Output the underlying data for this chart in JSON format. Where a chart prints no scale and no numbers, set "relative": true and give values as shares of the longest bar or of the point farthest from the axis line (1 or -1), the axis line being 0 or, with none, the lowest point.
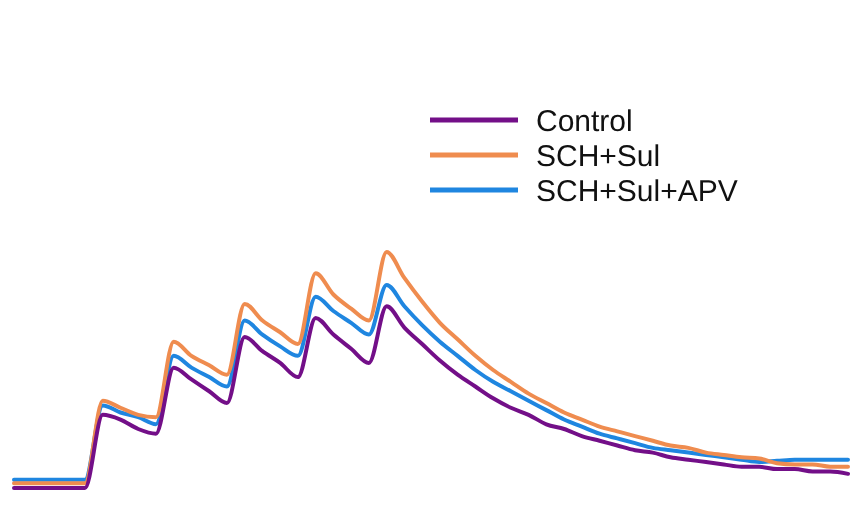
{
  "chart_data": {
    "type": "line",
    "relative": true,
    "legend": "top right",
    "marker": "none",
    "line_style": "solid",
    "grid": false,
    "categories": [
      null,
      null,
      null,
      null,
      null,
      null,
      null,
      null,
      null,
      null,
      null,
      null,
      null,
      null,
      null,
      null,
      null,
      null,
      null,
      null,
      null,
      null,
      null,
      null,
      null,
      null,
      null,
      null,
      null,
      null,
      null,
      null,
      null,
      null,
      null,
      null,
      null,
      null,
      null,
      null,
      null,
      null,
      null,
      null,
      null,
      null,
      null,
      null
    ],
    "series": [
      {
        "name": "Control",
        "color": "#730f88",
        "values": [
          0,
          0,
          0,
          0,
          0,
          0.31,
          0.29,
          0.25,
          0.23,
          0.51,
          0.46,
          0.41,
          0.36,
          0.64,
          0.58,
          0.53,
          0.47,
          0.72,
          0.65,
          0.59,
          0.53,
          0.77,
          0.68,
          0.61,
          0.54,
          0.48,
          0.43,
          0.38,
          0.34,
          0.31,
          0.27,
          0.25,
          0.22,
          0.2,
          0.18,
          0.16,
          0.15,
          0.13,
          0.12,
          0.11,
          0.1,
          0.09,
          0.09,
          0.08,
          0.08,
          0.07,
          0.07,
          0.06
        ]
      },
      {
        "name": "SCH+Sul",
        "color": "#ef8c4f",
        "values": [
          0.02,
          0.02,
          0.02,
          0.02,
          0.02,
          0.37,
          0.34,
          0.31,
          0.3,
          0.62,
          0.56,
          0.52,
          0.48,
          0.78,
          0.71,
          0.66,
          0.61,
          0.91,
          0.82,
          0.76,
          0.71,
          1,
          0.89,
          0.79,
          0.7,
          0.63,
          0.56,
          0.5,
          0.45,
          0.4,
          0.36,
          0.32,
          0.29,
          0.26,
          0.24,
          0.22,
          0.2,
          0.18,
          0.17,
          0.15,
          0.14,
          0.13,
          0.125,
          0.105,
          0.1,
          0.1,
          0.09,
          0.09
        ]
      },
      {
        "name": "SCH+Sul+APV",
        "color": "#1f86e0",
        "values": [
          0.035,
          0.035,
          0.035,
          0.035,
          0.035,
          0.35,
          0.32,
          0.3,
          0.27,
          0.56,
          0.51,
          0.47,
          0.43,
          0.71,
          0.65,
          0.6,
          0.56,
          0.81,
          0.75,
          0.7,
          0.65,
          0.86,
          0.77,
          0.69,
          0.62,
          0.56,
          0.5,
          0.45,
          0.41,
          0.37,
          0.33,
          0.29,
          0.26,
          0.23,
          0.21,
          0.19,
          0.17,
          0.16,
          0.15,
          0.14,
          0.13,
          0.12,
          0.11,
          0.115,
          0.12,
          0.12,
          0.12,
          0.12
        ]
      }
    ]
  }
}
